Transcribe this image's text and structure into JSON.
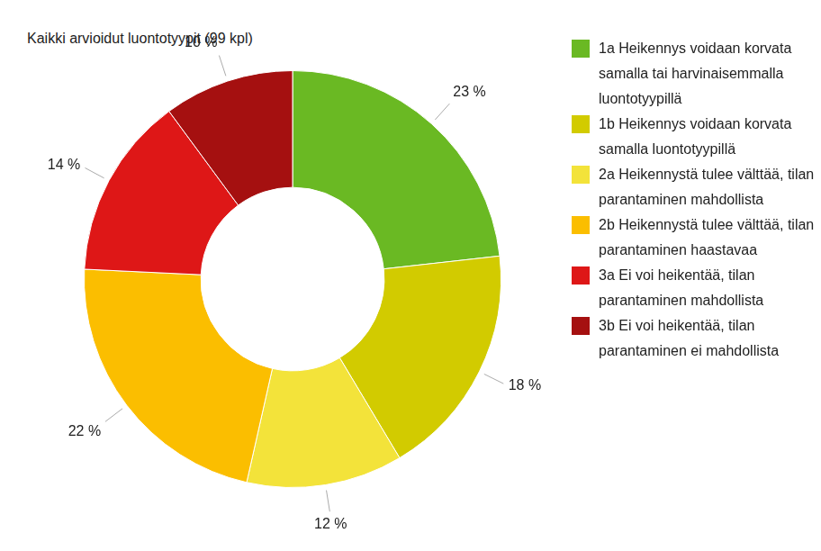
{
  "chart_data": {
    "type": "doughnut",
    "title": "Kaikki arvioidut luontotyypit (99 kpl)",
    "categories": [
      "1a Heikennys voidaan korvata samalla tai harvinaisemmalla luontotyypillä",
      "1b Heikennys voidaan korvata samalla luontotyypillä",
      "2a Heikennystä tulee välttää, tilan parantaminen mahdollista",
      "2b Heikennystä tulee välttää, tilan parantaminen haastavaa",
      "3a Ei voi heikentää, tilan parantaminen mahdollista",
      "3b Ei voi heikentää, tilan parantaminen ei mahdollista"
    ],
    "values": [
      23,
      18,
      12,
      22,
      14,
      10
    ],
    "value_labels": [
      "23 %",
      "18 %",
      "12 %",
      "22 %",
      "14 %",
      "10 %"
    ],
    "colors": [
      "#6ab923",
      "#d2cb00",
      "#f3e33a",
      "#fbbe00",
      "#de1717",
      "#a51010"
    ],
    "data_labels": true,
    "legend": "right"
  }
}
